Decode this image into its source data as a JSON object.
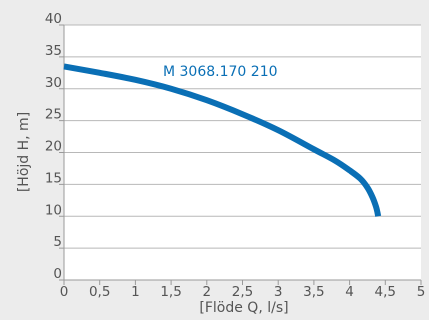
{
  "colors": {
    "panel_background": "#ececec",
    "plot_background": "#ffffff",
    "grid": "#b8b8b8",
    "axis": "#9a9a9a",
    "series": "#0a6fb5"
  },
  "chart_data": {
    "type": "line",
    "title": "",
    "xlabel": "[Flöde Q, l/s]",
    "ylabel": "[Höjd H, m]",
    "xlim": [
      0,
      5
    ],
    "ylim": [
      0,
      40
    ],
    "x_ticks": [
      "0",
      "0,5",
      "1",
      "1,5",
      "2",
      "2,5",
      "3",
      "3,5",
      "4",
      "4,5",
      "5"
    ],
    "y_ticks": [
      "0",
      "5",
      "10",
      "15",
      "20",
      "25",
      "30",
      "35",
      "40"
    ],
    "grid": {
      "horizontal": true,
      "vertical": false
    },
    "legend": "none",
    "series": [
      {
        "name": "M 3068.170 210",
        "x": [
          0,
          0.5,
          1.0,
          1.5,
          2.0,
          2.5,
          3.0,
          3.5,
          3.8,
          4.0,
          4.15,
          4.25,
          4.32,
          4.37,
          4.39,
          4.4
        ],
        "y": [
          33.5,
          32.5,
          31.4,
          30.0,
          28.2,
          26.0,
          23.5,
          20.5,
          18.7,
          17.2,
          15.9,
          14.5,
          13.0,
          11.5,
          10.6,
          10.0
        ]
      }
    ]
  }
}
